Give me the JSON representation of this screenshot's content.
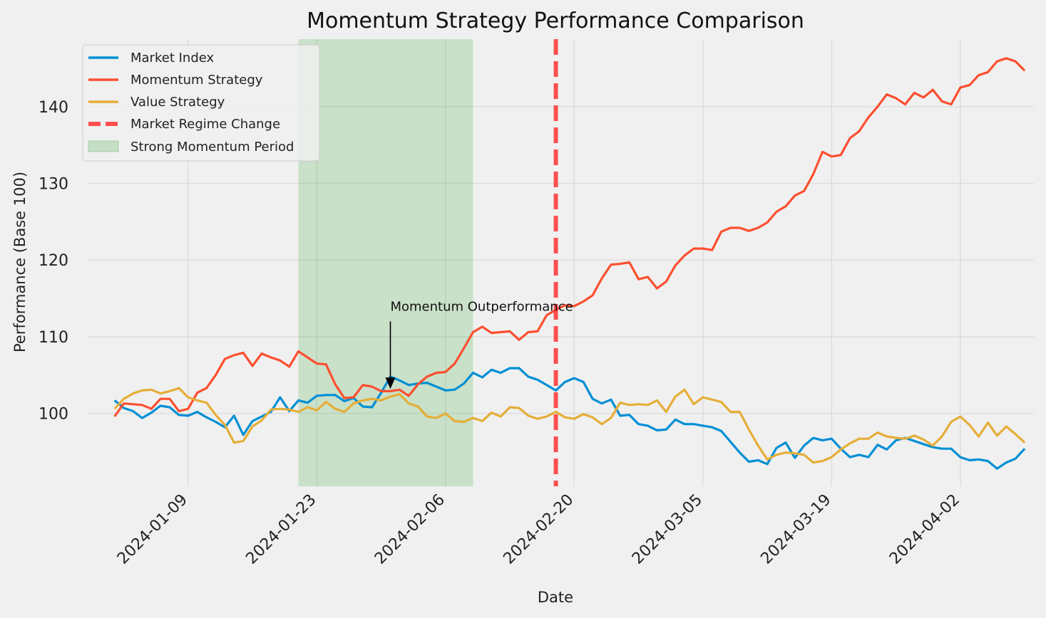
{
  "chart_data": {
    "type": "line",
    "title": "Momentum Strategy Performance Comparison",
    "xlabel": "Date",
    "ylabel": "Performance (Base 100)",
    "x_axis": "date",
    "ylim": [
      90.5,
      148.8
    ],
    "xlim": [
      "2023-12-29",
      "2024-04-10"
    ],
    "x_ticks": [
      "2024-01-09",
      "2024-01-23",
      "2024-02-06",
      "2024-02-20",
      "2024-03-05",
      "2024-03-19",
      "2024-04-02"
    ],
    "y_ticks": [
      100,
      110,
      120,
      130,
      140
    ],
    "grid": true,
    "legend_position": "top-left",
    "start_date": "2024-01-01",
    "series": [
      {
        "name": "Market Index",
        "color": "#008fd5",
        "values": [
          101.7,
          100.7,
          100.3,
          99.4,
          100.1,
          101.0,
          100.8,
          99.8,
          99.7,
          100.2,
          99.5,
          98.9,
          98.2,
          99.7,
          97.2,
          99.0,
          99.6,
          100.2,
          102.1,
          100.3,
          101.7,
          101.4,
          102.3,
          102.4,
          102.4,
          101.6,
          102.0,
          100.9,
          100.8,
          102.7,
          104.8,
          104.3,
          103.7,
          103.9,
          104.0,
          103.5,
          103.0,
          103.1,
          103.9,
          105.3,
          104.7,
          105.7,
          105.3,
          105.9,
          105.9,
          104.8,
          104.4,
          103.7,
          103.0,
          104.1,
          104.6,
          104.1,
          101.9,
          101.3,
          101.8,
          99.7,
          99.8,
          98.6,
          98.4,
          97.8,
          97.9,
          99.2,
          98.6,
          98.6,
          98.4,
          98.2,
          97.7,
          96.3,
          94.9,
          93.7,
          93.9,
          93.4,
          95.5,
          96.2,
          94.2,
          95.8,
          96.8,
          96.5,
          96.7,
          95.4,
          94.3,
          94.6,
          94.3,
          95.9,
          95.3,
          96.5,
          96.8,
          96.4,
          96.0,
          95.6,
          95.4,
          95.4,
          94.3,
          93.9,
          94.0,
          93.8,
          92.8,
          93.6,
          94.1,
          95.4
        ]
      },
      {
        "name": "Momentum Strategy",
        "color": "#fc4f30",
        "values": [
          99.6,
          101.3,
          101.2,
          101.1,
          100.6,
          101.9,
          101.9,
          100.3,
          100.6,
          102.7,
          103.3,
          105.0,
          107.1,
          107.6,
          107.9,
          106.2,
          107.8,
          107.3,
          106.9,
          106.1,
          108.1,
          107.3,
          106.5,
          106.4,
          103.8,
          102.0,
          102.1,
          103.7,
          103.5,
          102.9,
          102.9,
          103.1,
          102.3,
          103.8,
          104.8,
          105.3,
          105.4,
          106.5,
          108.5,
          110.6,
          111.3,
          110.5,
          110.6,
          110.7,
          109.6,
          110.6,
          110.7,
          112.8,
          113.5,
          114.1,
          114.0,
          114.6,
          115.4,
          117.6,
          119.4,
          119.5,
          119.7,
          117.5,
          117.8,
          116.3,
          117.2,
          119.3,
          120.6,
          121.5,
          121.5,
          121.3,
          123.7,
          124.2,
          124.2,
          123.8,
          124.2,
          124.9,
          126.3,
          127.0,
          128.4,
          129.0,
          131.2,
          134.1,
          133.5,
          133.7,
          135.9,
          136.8,
          138.6,
          140.0,
          141.6,
          141.1,
          140.3,
          141.8,
          141.2,
          142.2,
          140.7,
          140.3,
          142.5,
          142.8,
          144.1,
          144.5,
          145.9,
          146.3,
          145.9,
          144.7
        ]
      },
      {
        "name": "Value Strategy",
        "color": "#e5ae38",
        "values": [
          100.6,
          101.9,
          102.6,
          103.0,
          103.1,
          102.6,
          102.9,
          103.3,
          102.1,
          101.7,
          101.4,
          99.8,
          98.5,
          96.2,
          96.4,
          98.3,
          99.1,
          100.5,
          100.6,
          100.5,
          100.2,
          100.8,
          100.4,
          101.5,
          100.6,
          100.2,
          101.3,
          101.7,
          101.9,
          101.7,
          102.2,
          102.5,
          101.3,
          100.9,
          99.6,
          99.4,
          100.0,
          99.0,
          98.9,
          99.4,
          99.0,
          100.1,
          99.6,
          100.8,
          100.7,
          99.7,
          99.3,
          99.6,
          100.2,
          99.5,
          99.3,
          99.9,
          99.5,
          98.6,
          99.4,
          101.4,
          101.1,
          101.2,
          101.1,
          101.7,
          100.2,
          102.2,
          103.1,
          101.2,
          102.1,
          101.8,
          101.5,
          100.2,
          100.2,
          97.9,
          95.8,
          94.0,
          94.6,
          94.9,
          94.8,
          94.6,
          93.6,
          93.8,
          94.3,
          95.3,
          96.1,
          96.7,
          96.7,
          97.5,
          97.0,
          96.8,
          96.7,
          97.1,
          96.6,
          95.8,
          97.0,
          98.9,
          99.6,
          98.5,
          97.0,
          98.8,
          97.1,
          98.3,
          97.3,
          96.2
        ]
      }
    ],
    "vline": {
      "label": "Market Regime Change",
      "date": "2024-02-18",
      "color": "#ff3333"
    },
    "shaded_region": {
      "label": "Strong Momentum Period",
      "start": "2024-01-21",
      "end": "2024-02-09",
      "color": "#2ca02c"
    },
    "annotation": {
      "text": "Momentum Outperformance",
      "date": "2024-01-31",
      "value": 103.2
    }
  }
}
